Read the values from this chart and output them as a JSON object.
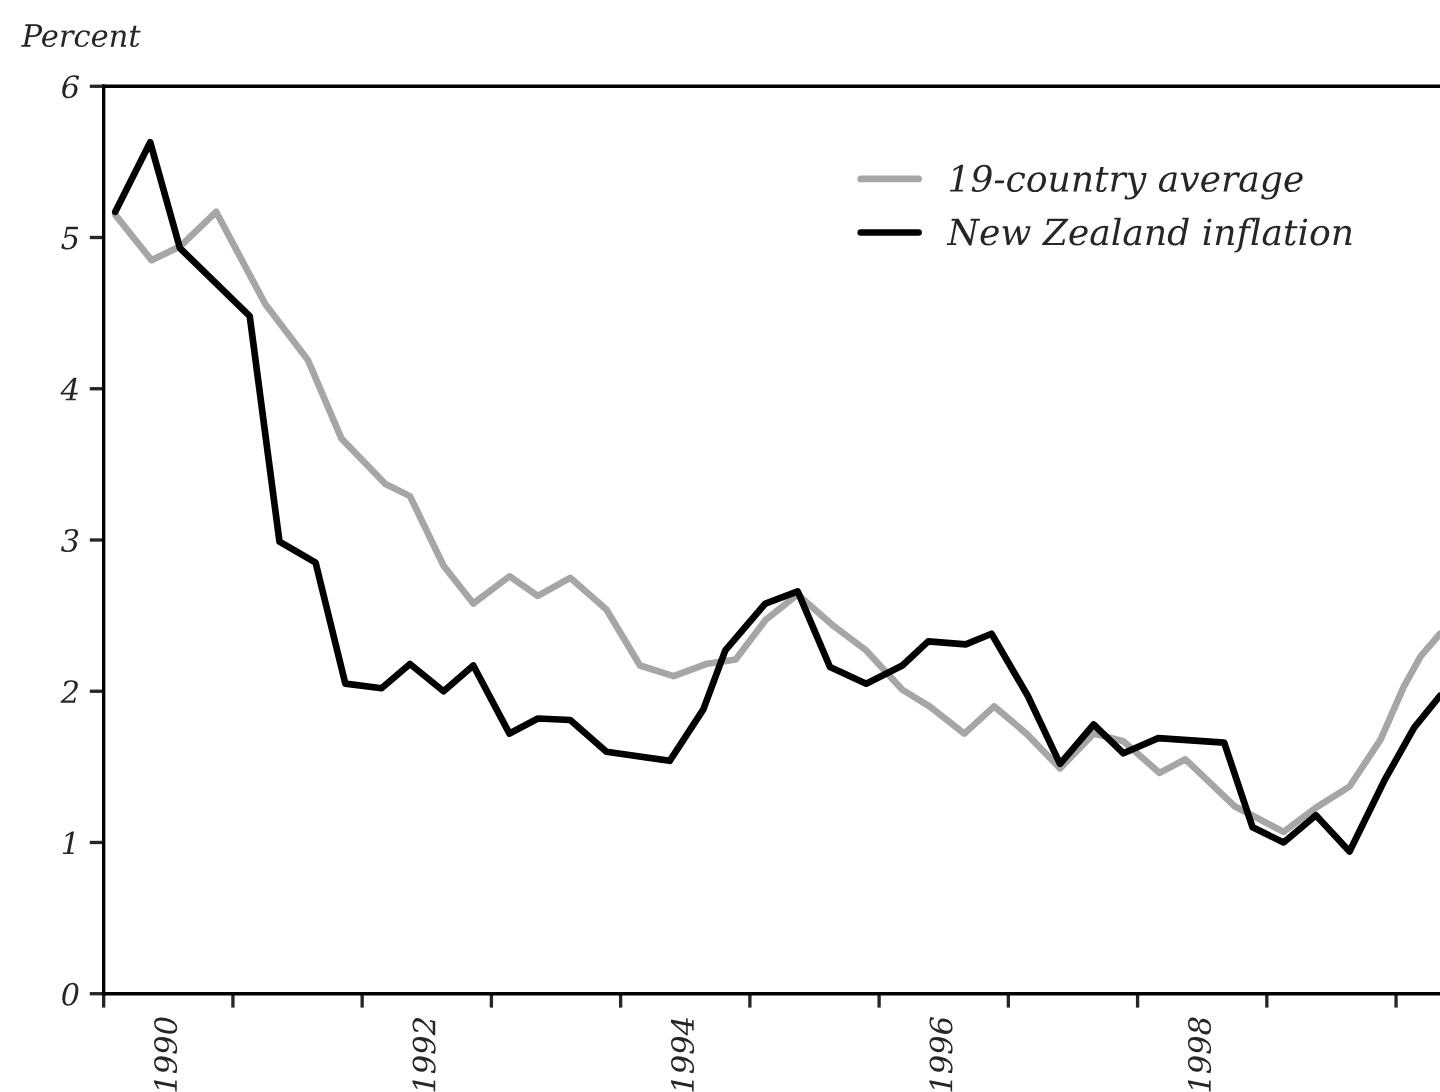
{
  "chart_data": {
    "type": "line",
    "ylabel": "Percent",
    "xlim": [
      1990,
      2000.34
    ],
    "ylim": [
      0,
      6
    ],
    "yticks": [
      0,
      1,
      2,
      3,
      4,
      5,
      6
    ],
    "xticks": [
      {
        "value": 1990,
        "label": null
      },
      {
        "value": 1990.5,
        "label": "1990"
      },
      {
        "value": 1991,
        "label": null
      },
      {
        "value": 1992,
        "label": null
      },
      {
        "value": 1992.5,
        "label": "1992"
      },
      {
        "value": 1993,
        "label": null
      },
      {
        "value": 1994,
        "label": null
      },
      {
        "value": 1994.5,
        "label": "1994"
      },
      {
        "value": 1995,
        "label": null
      },
      {
        "value": 1996,
        "label": null
      },
      {
        "value": 1996.5,
        "label": "1996"
      },
      {
        "value": 1997,
        "label": null
      },
      {
        "value": 1998,
        "label": null
      },
      {
        "value": 1998.5,
        "label": "1998"
      },
      {
        "value": 1999,
        "label": null
      },
      {
        "value": 2000,
        "label": null
      }
    ],
    "grid": false,
    "legend": "top right",
    "marker": "none",
    "line_style": "solid",
    "series": [
      {
        "name": "19-country average",
        "color": "#a6a6a6",
        "x": [
          1990.09,
          1990.37,
          1990.59,
          1990.87,
          1991.25,
          1991.58,
          1991.84,
          1992.18,
          1992.37,
          1992.63,
          1992.86,
          1993.14,
          1993.36,
          1993.61,
          1993.89,
          1994.15,
          1994.41,
          1994.66,
          1994.89,
          1995.12,
          1995.37,
          1995.65,
          1995.9,
          1996.18,
          1996.39,
          1996.66,
          1996.89,
          1997.14,
          1997.4,
          1997.66,
          1997.89,
          1998.17,
          1998.37,
          1998.75,
          1999.13,
          1999.38,
          1999.64,
          1999.88,
          2000.06,
          2000.19,
          2000.34
        ],
        "values": [
          5.15,
          4.85,
          4.94,
          5.17,
          4.56,
          4.19,
          3.67,
          3.37,
          3.29,
          2.83,
          2.58,
          2.76,
          2.63,
          2.75,
          2.54,
          2.17,
          2.1,
          2.18,
          2.21,
          2.47,
          2.64,
          2.43,
          2.27,
          2.01,
          1.9,
          1.72,
          1.9,
          1.72,
          1.49,
          1.72,
          1.67,
          1.46,
          1.55,
          1.24,
          1.07,
          1.23,
          1.37,
          1.68,
          2.03,
          2.23,
          2.38
        ]
      },
      {
        "name": "New Zealand inflation",
        "color": "#000000",
        "x": [
          1990.09,
          1990.36,
          1990.59,
          1991.13,
          1991.36,
          1991.64,
          1991.87,
          1992.15,
          1992.37,
          1992.63,
          1992.86,
          1993.14,
          1993.36,
          1993.61,
          1993.89,
          1994.38,
          1994.64,
          1994.81,
          1995.12,
          1995.37,
          1995.62,
          1995.9,
          1996.18,
          1996.38,
          1996.67,
          1996.87,
          1997.15,
          1997.4,
          1997.66,
          1997.89,
          1998.16,
          1998.67,
          1998.89,
          1999.13,
          1999.38,
          1999.64,
          1999.91,
          2000.14,
          2000.34
        ],
        "values": [
          5.17,
          5.63,
          4.93,
          4.48,
          2.99,
          2.85,
          2.05,
          2.02,
          2.18,
          2.0,
          2.17,
          1.72,
          1.82,
          1.81,
          1.6,
          1.54,
          1.88,
          2.27,
          2.58,
          2.66,
          2.16,
          2.05,
          2.17,
          2.33,
          2.31,
          2.38,
          1.97,
          1.52,
          1.78,
          1.59,
          1.69,
          1.66,
          1.1,
          1.0,
          1.18,
          0.94,
          1.41,
          1.76,
          1.97
        ]
      }
    ]
  }
}
